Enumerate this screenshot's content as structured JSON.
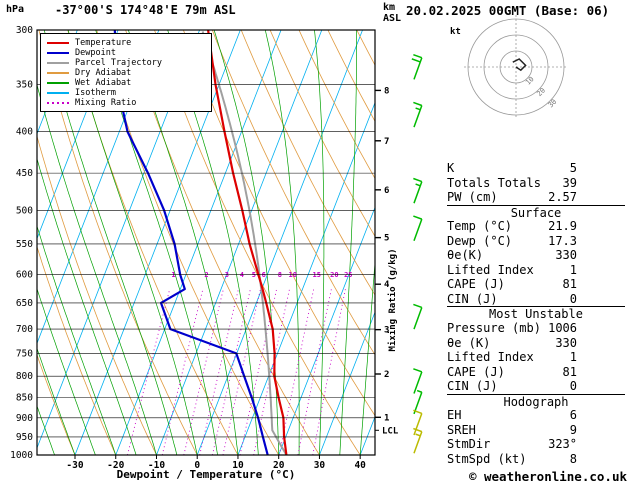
{
  "header": {
    "pressure_unit": "hPa",
    "station": "-37°00'S 174°48'E 79m ASL",
    "km_label": "km",
    "asl_label": "ASL",
    "datetime": "20.02.2025 00GMT (Base: 06)"
  },
  "footer": {
    "credit": "© weatheronline.co.uk"
  },
  "panel": {
    "rows_top": [
      {
        "label": "K",
        "value": "5"
      },
      {
        "label": "Totals Totals",
        "value": "39"
      },
      {
        "label": "PW (cm)",
        "value": "2.57"
      }
    ],
    "surface": {
      "title": "Surface",
      "rows": [
        {
          "label": "Temp (°C)",
          "value": "21.9"
        },
        {
          "label": "Dewp (°C)",
          "value": "17.3"
        },
        {
          "label": "θe(K)",
          "value": "330"
        },
        {
          "label": "Lifted Index",
          "value": "1"
        },
        {
          "label": "CAPE (J)",
          "value": "81"
        },
        {
          "label": "CIN (J)",
          "value": "0"
        }
      ]
    },
    "most_unstable": {
      "title": "Most Unstable",
      "rows": [
        {
          "label": "Pressure (mb)",
          "value": "1006"
        },
        {
          "label": "θe (K)",
          "value": "330"
        },
        {
          "label": "Lifted Index",
          "value": "1"
        },
        {
          "label": "CAPE (J)",
          "value": "81"
        },
        {
          "label": "CIN (J)",
          "value": "0"
        }
      ]
    },
    "hodograph": {
      "title": "Hodograph",
      "rows": [
        {
          "label": "EH",
          "value": "6"
        },
        {
          "label": "SREH",
          "value": "9"
        },
        {
          "label": "StmDir",
          "value": "323°"
        },
        {
          "label": "StmSpd (kt)",
          "value": "8"
        }
      ]
    }
  },
  "chart_data": {
    "type": "skewt_logp_sounding",
    "title": "-37°00'S 174°48'E 79m ASL",
    "valid": "20.02.2025 00GMT (Base: 06)",
    "pressure_hpa": [
      1000,
      950,
      900,
      850,
      800,
      750,
      700,
      650,
      625,
      600,
      550,
      500,
      450,
      400,
      350,
      300
    ],
    "temperature_c": [
      21.9,
      19.6,
      17.6,
      14.5,
      11.4,
      9.3,
      6.5,
      2.4,
      0.2,
      -2.2,
      -7.3,
      -12.3,
      -18.1,
      -24.2,
      -30.9,
      -37.9
    ],
    "dewpoint_c": [
      17.3,
      14.4,
      11.4,
      7.9,
      4.0,
      -0.1,
      -18.6,
      -23.4,
      -18.9,
      -21.4,
      -25.7,
      -31.5,
      -39.0,
      -48.0,
      -55.0,
      -60.8
    ],
    "surface": {
      "temp_c": 21.9,
      "dewp_c": 17.3
    },
    "x_axis": {
      "label": "Dewpoint / Temperature (°C)",
      "ticks": [
        -30,
        -20,
        -10,
        0,
        10,
        20,
        30,
        40
      ]
    },
    "y_axis": {
      "unit": "hPa",
      "ticks": [
        300,
        350,
        400,
        450,
        500,
        550,
        600,
        650,
        700,
        750,
        800,
        850,
        900,
        950,
        1000
      ]
    },
    "km_axis": {
      "unit": "km ASL",
      "ticks": [
        1,
        2,
        3,
        4,
        5,
        6,
        7,
        8
      ]
    },
    "mixing_ratio_lines_gkg": [
      1,
      2,
      3,
      4,
      5,
      6,
      8,
      10,
      15,
      20,
      25
    ],
    "mixing_ratio_axis_label": "Mixing Ratio (g/kg)",
    "lcl_label": "LCL",
    "legend": [
      {
        "label": "Temperature",
        "color": "#dd0000",
        "style": "solid"
      },
      {
        "label": "Dewpoint",
        "color": "#0000cc",
        "style": "solid"
      },
      {
        "label": "Parcel Trajectory",
        "color": "#a0a0a0",
        "style": "solid"
      },
      {
        "label": "Dry Adiabat",
        "color": "#e09b40",
        "style": "solid"
      },
      {
        "label": "Wet Adiabat",
        "color": "#00a000",
        "style": "solid"
      },
      {
        "label": "Isotherm",
        "color": "#00b0f0",
        "style": "solid"
      },
      {
        "label": "Mixing Ratio",
        "color": "#c800c8",
        "style": "dotted"
      }
    ],
    "colors": {
      "temperature": "#dd0000",
      "dewpoint": "#0000cc",
      "parcel": "#a0a0a0",
      "dry_adiabat": "#e09b40",
      "wet_adiabat": "#00a000",
      "isotherm": "#00b0f0",
      "mixing_ratio": "#c800c8",
      "grid": "#000000"
    },
    "wind_barbs": [
      {
        "p": 345,
        "spd": 20,
        "color": "#00bb00"
      },
      {
        "p": 395,
        "spd": 15,
        "color": "#00bb00"
      },
      {
        "p": 490,
        "spd": 15,
        "color": "#00bb00"
      },
      {
        "p": 545,
        "spd": 10,
        "color": "#00bb00"
      },
      {
        "p": 700,
        "spd": 10,
        "color": "#00bb00"
      },
      {
        "p": 840,
        "spd": 10,
        "color": "#00bb00"
      },
      {
        "p": 890,
        "spd": 5,
        "color": "#00bb00"
      },
      {
        "p": 945,
        "spd": 10,
        "color": "#bbbb00"
      },
      {
        "p": 995,
        "spd": 15,
        "color": "#bbbb00"
      }
    ],
    "hodograph": {
      "unit_label": "kt",
      "ring_radii_kt": [
        10,
        20,
        30
      ],
      "ring_labels": [
        "10",
        "20",
        "30"
      ],
      "trace_uv_kt": [
        [
          0,
          0
        ],
        [
          3,
          -2
        ],
        [
          6,
          1
        ],
        [
          2,
          5
        ],
        [
          -2,
          3
        ]
      ]
    }
  }
}
